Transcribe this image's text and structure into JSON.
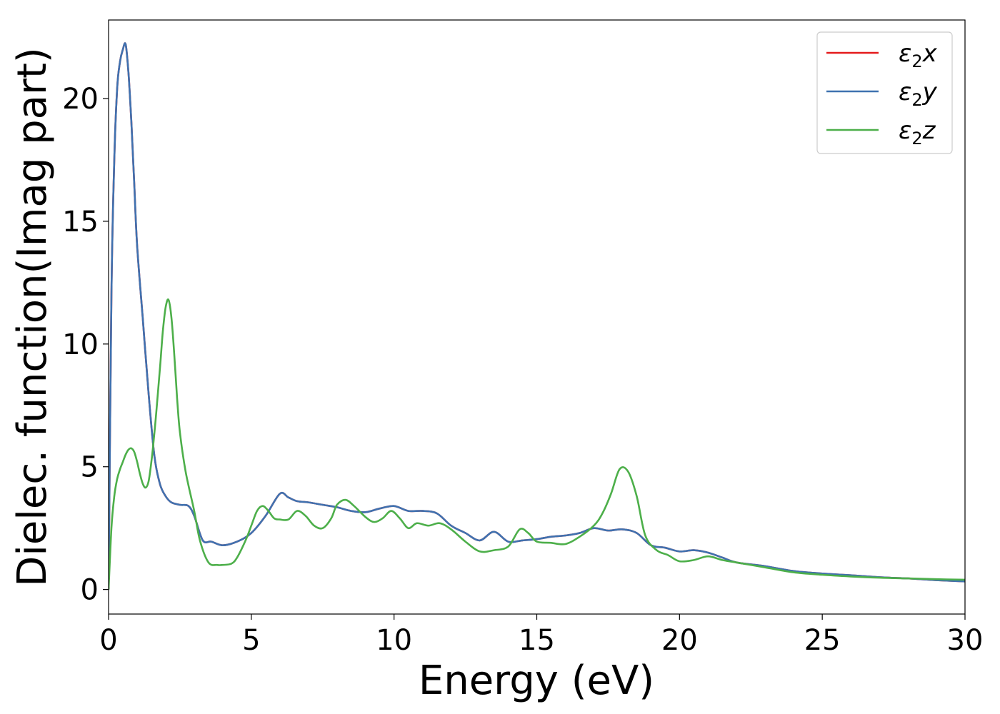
{
  "chart_data": {
    "type": "line",
    "title": "",
    "xlabel": "Energy (eV)",
    "ylabel": "Dielec. function(Imag part)",
    "xlim": [
      0,
      30
    ],
    "ylim": [
      -1,
      23.2
    ],
    "xticks": [
      0,
      5,
      10,
      15,
      20,
      25,
      30
    ],
    "yticks": [
      0,
      5,
      10,
      15,
      20
    ],
    "grid": false,
    "legend_position": "top-right",
    "series": [
      {
        "name": "ε₂x",
        "legend_base": "ε",
        "legend_sub": "2",
        "legend_axis": "x",
        "color": "#e41a1c",
        "x": [
          0,
          0.1,
          0.2,
          0.3,
          0.4,
          0.5,
          0.6,
          0.7,
          0.8,
          0.9,
          1.0,
          1.2,
          1.4,
          1.6,
          1.8,
          2.0,
          2.2,
          2.5,
          2.8,
          3.0,
          3.3,
          3.6,
          4.0,
          4.5,
          5.0,
          5.5,
          6.0,
          6.3,
          6.6,
          7.0,
          7.5,
          8.0,
          8.5,
          9.0,
          9.5,
          10.0,
          10.5,
          11.0,
          11.5,
          12.0,
          12.5,
          13.0,
          13.5,
          14.0,
          14.5,
          15.0,
          15.5,
          16.0,
          16.5,
          17.0,
          17.5,
          18.0,
          18.5,
          19.0,
          19.5,
          20.0,
          20.5,
          21.0,
          21.5,
          22.0,
          23.0,
          24.0,
          25.0,
          26.0,
          27.0,
          28.0,
          29.0,
          30.0
        ],
        "y": [
          0,
          12.0,
          17.5,
          20.4,
          21.5,
          22.0,
          22.2,
          21.0,
          19.0,
          16.5,
          14.0,
          11.0,
          8.0,
          5.5,
          4.3,
          3.8,
          3.55,
          3.45,
          3.4,
          3.0,
          2.0,
          1.95,
          1.8,
          1.95,
          2.3,
          3.0,
          3.9,
          3.75,
          3.6,
          3.55,
          3.45,
          3.35,
          3.2,
          3.15,
          3.3,
          3.4,
          3.2,
          3.2,
          3.1,
          2.6,
          2.3,
          2.0,
          2.35,
          1.95,
          2.0,
          2.05,
          2.15,
          2.2,
          2.3,
          2.5,
          2.4,
          2.45,
          2.3,
          1.8,
          1.7,
          1.55,
          1.6,
          1.5,
          1.3,
          1.1,
          0.95,
          0.75,
          0.65,
          0.58,
          0.5,
          0.45,
          0.38,
          0.33
        ]
      },
      {
        "name": "ε₂y",
        "legend_base": "ε",
        "legend_sub": "2",
        "legend_axis": "y",
        "color": "#3f72b0",
        "x": [
          0,
          0.1,
          0.2,
          0.3,
          0.4,
          0.5,
          0.6,
          0.7,
          0.8,
          0.9,
          1.0,
          1.2,
          1.4,
          1.6,
          1.8,
          2.0,
          2.2,
          2.5,
          2.8,
          3.0,
          3.3,
          3.6,
          4.0,
          4.5,
          5.0,
          5.5,
          6.0,
          6.3,
          6.6,
          7.0,
          7.5,
          8.0,
          8.5,
          9.0,
          9.5,
          10.0,
          10.5,
          11.0,
          11.5,
          12.0,
          12.5,
          13.0,
          13.5,
          14.0,
          14.5,
          15.0,
          15.5,
          16.0,
          16.5,
          17.0,
          17.5,
          18.0,
          18.5,
          19.0,
          19.5,
          20.0,
          20.5,
          21.0,
          21.5,
          22.0,
          23.0,
          24.0,
          25.0,
          26.0,
          27.0,
          28.0,
          29.0,
          30.0
        ],
        "y": [
          0,
          12.0,
          17.5,
          20.4,
          21.5,
          22.0,
          22.2,
          21.0,
          19.0,
          16.5,
          14.0,
          11.0,
          8.0,
          5.5,
          4.3,
          3.8,
          3.55,
          3.45,
          3.4,
          3.0,
          2.0,
          1.95,
          1.8,
          1.95,
          2.3,
          3.0,
          3.9,
          3.75,
          3.6,
          3.55,
          3.45,
          3.35,
          3.2,
          3.15,
          3.3,
          3.4,
          3.2,
          3.2,
          3.1,
          2.6,
          2.3,
          2.0,
          2.35,
          1.95,
          2.0,
          2.05,
          2.15,
          2.2,
          2.3,
          2.5,
          2.4,
          2.45,
          2.3,
          1.8,
          1.7,
          1.55,
          1.6,
          1.5,
          1.3,
          1.1,
          0.95,
          0.75,
          0.65,
          0.58,
          0.5,
          0.45,
          0.38,
          0.33
        ]
      },
      {
        "name": "ε₂z",
        "legend_base": "ε",
        "legend_sub": "2",
        "legend_axis": "z",
        "color": "#4daf4a",
        "x": [
          0,
          0.1,
          0.2,
          0.3,
          0.4,
          0.5,
          0.6,
          0.7,
          0.8,
          0.9,
          1.0,
          1.1,
          1.2,
          1.3,
          1.4,
          1.5,
          1.6,
          1.7,
          1.8,
          1.9,
          2.0,
          2.1,
          2.2,
          2.3,
          2.4,
          2.5,
          2.7,
          3.0,
          3.2,
          3.5,
          3.8,
          4.0,
          4.3,
          4.5,
          4.8,
          5.0,
          5.2,
          5.4,
          5.6,
          5.8,
          6.0,
          6.3,
          6.6,
          6.9,
          7.2,
          7.5,
          7.8,
          8.0,
          8.3,
          8.6,
          9.0,
          9.3,
          9.6,
          9.9,
          10.2,
          10.5,
          10.8,
          11.2,
          11.6,
          12.0,
          12.5,
          13.0,
          13.5,
          14.0,
          14.4,
          14.7,
          15.0,
          15.5,
          16.0,
          16.5,
          17.0,
          17.3,
          17.6,
          17.9,
          18.2,
          18.5,
          18.8,
          19.2,
          19.6,
          20.0,
          20.5,
          21.0,
          21.5,
          22.0,
          23.0,
          24.0,
          25.0,
          26.0,
          27.0,
          28.0,
          29.0,
          30.0
        ],
        "y": [
          0,
          2.5,
          3.8,
          4.5,
          4.9,
          5.2,
          5.5,
          5.7,
          5.75,
          5.6,
          5.2,
          4.7,
          4.3,
          4.15,
          4.4,
          5.2,
          6.3,
          7.6,
          9.0,
          10.5,
          11.5,
          11.8,
          11.1,
          9.6,
          7.8,
          6.4,
          4.8,
          3.2,
          2.0,
          1.1,
          1.0,
          1.0,
          1.05,
          1.3,
          2.0,
          2.6,
          3.2,
          3.4,
          3.2,
          2.9,
          2.85,
          2.85,
          3.2,
          3.0,
          2.6,
          2.5,
          2.9,
          3.45,
          3.65,
          3.4,
          2.95,
          2.75,
          2.9,
          3.2,
          2.9,
          2.5,
          2.7,
          2.6,
          2.7,
          2.45,
          1.95,
          1.55,
          1.6,
          1.75,
          2.45,
          2.3,
          1.95,
          1.9,
          1.85,
          2.15,
          2.6,
          3.1,
          3.9,
          4.9,
          4.8,
          3.8,
          2.2,
          1.6,
          1.4,
          1.15,
          1.2,
          1.35,
          1.2,
          1.1,
          0.9,
          0.7,
          0.6,
          0.53,
          0.48,
          0.45,
          0.42,
          0.4
        ]
      }
    ]
  }
}
